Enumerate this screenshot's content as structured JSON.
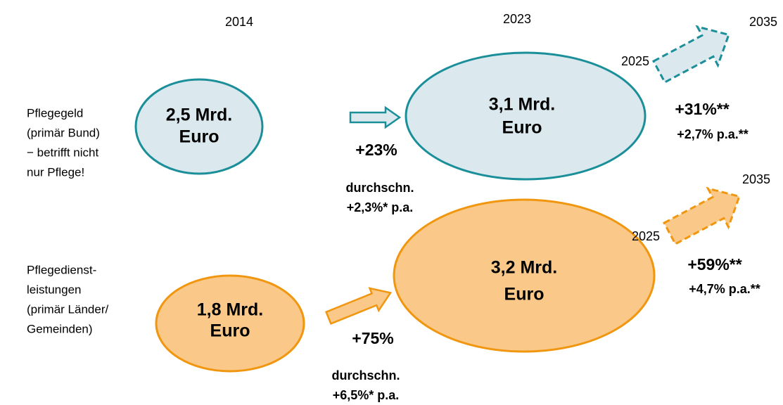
{
  "years": [
    "2014",
    "2023"
  ],
  "rows": [
    {
      "label": [
        "Pflegegeld",
        "(primär Bund)",
        "− betrifft nicht",
        "nur Pflege!"
      ],
      "value_2014": [
        "2,5 Mrd.",
        "Euro"
      ],
      "value_2023": [
        "3,1 Mrd.",
        "Euro"
      ],
      "growth": "+23%",
      "average": [
        "durchschn.",
        "+2,3%* p.a."
      ],
      "forecast": {
        "from": "2025",
        "to": "2035",
        "growth": "+31%**",
        "average": "+2,7% p.a.**"
      }
    },
    {
      "label": [
        "Pflegedienst-",
        "leistungen",
        "(primär Länder/",
        "Gemeinden)"
      ],
      "value_2014": [
        "1,8 Mrd.",
        "Euro"
      ],
      "value_2023": [
        "3,2 Mrd.",
        "Euro"
      ],
      "growth": "+75%",
      "average": [
        "durchschn.",
        "+6,5%* p.a."
      ],
      "forecast": {
        "from": "2025",
        "to": "2035",
        "growth": "+59%**",
        "average": "+4,7% p.a.**"
      }
    }
  ]
}
